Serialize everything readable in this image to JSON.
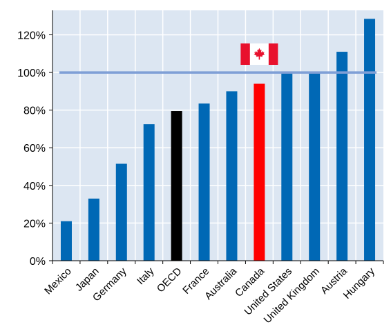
{
  "chart_data": {
    "type": "bar",
    "categories": [
      "Mexico",
      "Japan",
      "Germany",
      "Italy",
      "OECD",
      "France",
      "Australia",
      "Canada",
      "United States",
      "United Kingdom",
      "Austria",
      "Hungary"
    ],
    "values": [
      21,
      33,
      51.5,
      72.5,
      79.5,
      83.5,
      90,
      94,
      99.5,
      100,
      111,
      128.5
    ],
    "bar_colors": [
      "#0068b5",
      "#0068b5",
      "#0068b5",
      "#0068b5",
      "#000000",
      "#0068b5",
      "#0068b5",
      "#ff0000",
      "#0068b5",
      "#0068b5",
      "#0068b5",
      "#0068b5"
    ],
    "reference_line": {
      "value": 100,
      "color": "#7f9fd6"
    },
    "yticks": [
      "0%",
      "20%",
      "40%",
      "60%",
      "80%",
      "100%",
      "120%"
    ],
    "ylim": [
      0,
      133
    ],
    "grid": true,
    "title": "",
    "xlabel": "",
    "ylabel": "",
    "annotation_icon": "canada-flag-icon",
    "annotation_category": "Canada",
    "colors": {
      "plot_background": "#dce6f2",
      "grid": "#ffffff",
      "bar": "#0068b5",
      "highlight": "#ff0000",
      "oecd": "#000000",
      "flag_red": "#e8112d"
    }
  }
}
